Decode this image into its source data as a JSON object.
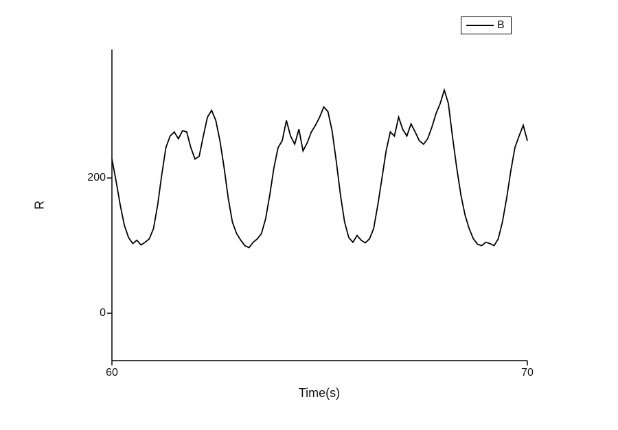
{
  "chart_data": {
    "type": "line",
    "title": "",
    "xlabel": "Time(s)",
    "ylabel": "R",
    "xlim": [
      60,
      70
    ],
    "ylim": [
      -70,
      390
    ],
    "grid": false,
    "background": "#ffffff",
    "line_color": "#000000",
    "line_width": 1.8,
    "xticks": [
      {
        "value": 60,
        "label": "60"
      },
      {
        "value": 70,
        "label": "70"
      }
    ],
    "yticks": [
      {
        "value": 0,
        "label": "0"
      },
      {
        "value": 200,
        "label": "200"
      }
    ],
    "legend": {
      "position": "top-right",
      "entries": [
        {
          "label": "B",
          "color": "#000000"
        }
      ]
    },
    "series": [
      {
        "name": "B",
        "x": [
          60.0,
          60.1,
          60.2,
          60.3,
          60.4,
          60.5,
          60.6,
          60.7,
          60.8,
          60.9,
          61.0,
          61.1,
          61.2,
          61.3,
          61.4,
          61.5,
          61.6,
          61.7,
          61.8,
          61.9,
          62.0,
          62.1,
          62.2,
          62.3,
          62.4,
          62.5,
          62.6,
          62.7,
          62.8,
          62.9,
          63.0,
          63.1,
          63.2,
          63.3,
          63.4,
          63.5,
          63.6,
          63.7,
          63.8,
          63.9,
          64.0,
          64.1,
          64.2,
          64.3,
          64.4,
          64.5,
          64.6,
          64.7,
          64.8,
          64.9,
          65.0,
          65.1,
          65.2,
          65.3,
          65.4,
          65.5,
          65.6,
          65.7,
          65.8,
          65.9,
          66.0,
          66.1,
          66.2,
          66.3,
          66.4,
          66.5,
          66.6,
          66.7,
          66.8,
          66.9,
          67.0,
          67.1,
          67.2,
          67.3,
          67.4,
          67.5,
          67.6,
          67.7,
          67.8,
          67.9,
          68.0,
          68.1,
          68.2,
          68.3,
          68.4,
          68.5,
          68.6,
          68.7,
          68.8,
          68.9,
          69.0,
          69.1,
          69.2,
          69.3,
          69.4,
          69.5,
          69.6,
          69.7,
          69.8,
          69.9,
          70.0
        ],
        "y": [
          228,
          195,
          160,
          130,
          112,
          103,
          108,
          101,
          105,
          110,
          125,
          160,
          205,
          245,
          262,
          268,
          258,
          270,
          268,
          245,
          228,
          232,
          262,
          290,
          300,
          285,
          255,
          215,
          170,
          135,
          118,
          108,
          100,
          97,
          105,
          110,
          118,
          140,
          175,
          215,
          245,
          255,
          285,
          262,
          250,
          272,
          240,
          252,
          268,
          278,
          290,
          305,
          298,
          270,
          225,
          175,
          135,
          112,
          105,
          115,
          108,
          104,
          110,
          125,
          160,
          200,
          240,
          268,
          262,
          290,
          272,
          262,
          280,
          268,
          255,
          250,
          258,
          275,
          295,
          310,
          330,
          310,
          260,
          215,
          175,
          145,
          125,
          110,
          102,
          100,
          105,
          103,
          100,
          110,
          135,
          170,
          210,
          245,
          262,
          278,
          255
        ]
      }
    ]
  }
}
